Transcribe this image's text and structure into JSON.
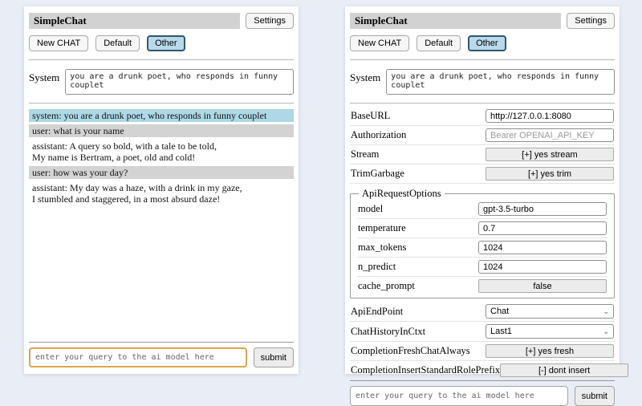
{
  "colors": {
    "page_bg": "#e9eef6",
    "panel_bg": "#ffffff",
    "titlebar_bg": "#d2d2d2",
    "active_session_bg": "#b8d9ea",
    "active_session_border": "#33566e",
    "system_msg_bg": "#add8e6",
    "user_msg_bg": "#d3d3d3",
    "query_focus_border": "#dca54c",
    "control_bg": "#ececec"
  },
  "app": {
    "title": "SimpleChat",
    "settings_button": "Settings",
    "sessions": [
      "New CHAT",
      "Default",
      "Other"
    ],
    "active_session": "Other",
    "system_label": "System",
    "system_prompt": "you are a drunk poet, who responds in funny couplet",
    "query_placeholder": "enter your query to the ai model here",
    "submit_label": "submit"
  },
  "chat": {
    "messages": [
      {
        "role": "system",
        "text": "system: you are a drunk poet, who responds in funny couplet"
      },
      {
        "role": "user",
        "text": "user: what is your name"
      },
      {
        "role": "assistant",
        "text": "assistant: A query so bold, with a tale to be told,\nMy name is Bertram, a poet, old and cold!"
      },
      {
        "role": "user",
        "text": "user: how was your day?"
      },
      {
        "role": "assistant",
        "text": "assistant: My day was a haze, with a drink in my gaze,\nI stumbled and staggered, in a most absurd daze!"
      }
    ]
  },
  "settings": {
    "rows": [
      {
        "label": "BaseURL",
        "type": "text",
        "value": "http://127.0.0.1:8080",
        "placeholder": ""
      },
      {
        "label": "Authorization",
        "type": "text",
        "value": "",
        "placeholder": "Bearer OPENAI_API_KEY"
      },
      {
        "label": "Stream",
        "type": "button",
        "value": "[+] yes stream"
      },
      {
        "label": "TrimGarbage",
        "type": "button",
        "value": "[+] yes trim"
      },
      {
        "type": "group",
        "legend": "ApiRequestOptions",
        "rows": [
          {
            "label": "model",
            "type": "text",
            "value": "gpt-3.5-turbo",
            "placeholder": ""
          },
          {
            "label": "temperature",
            "type": "text",
            "value": "0.7",
            "placeholder": ""
          },
          {
            "label": "max_tokens",
            "type": "text",
            "value": "1024",
            "placeholder": ""
          },
          {
            "label": "n_predict",
            "type": "text",
            "value": "1024",
            "placeholder": ""
          },
          {
            "label": "cache_prompt",
            "type": "button",
            "value": "false"
          }
        ]
      },
      {
        "label": "ApiEndPoint",
        "type": "select",
        "value": "Chat"
      },
      {
        "label": "ChatHistoryInCtxt",
        "type": "select",
        "value": "Last1"
      },
      {
        "label": "CompletionFreshChatAlways",
        "type": "button",
        "value": "[+] yes fresh"
      },
      {
        "label": "CompletionInsertStandardRolePrefix",
        "type": "button",
        "value": "[-] dont insert"
      }
    ]
  }
}
